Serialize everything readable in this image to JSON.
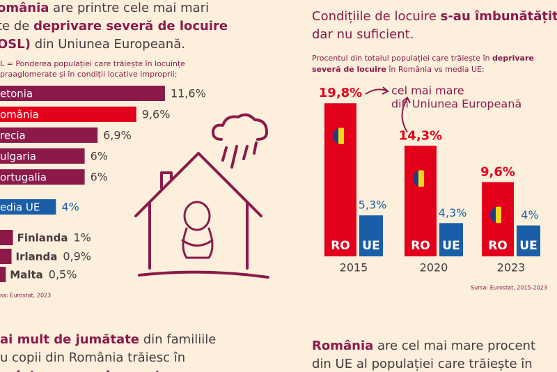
{
  "left_title": {
    "lines": [
      [
        {
          "text": "omânia",
          "bold": true
        },
        {
          "text": " are printre cele mai mari",
          "bold": false
        }
      ],
      [
        {
          "text": "te de ",
          "bold": false
        },
        {
          "text": "deprivare severă de locuire",
          "bold": true
        }
      ],
      [
        {
          "text": "OSL)",
          "bold": true
        },
        {
          "text": " din Uniunea Europeană.",
          "bold": false
        }
      ]
    ]
  },
  "right_title": {
    "lines": [
      [
        {
          "text": "Condițiile de locuire ",
          "bold": false
        },
        {
          "text": "s-au îmbunătățit,",
          "bold": true
        }
      ],
      [
        {
          "text": "dar nu suficient.",
          "bold": false
        }
      ]
    ]
  },
  "bottom_left": {
    "lines": [
      [
        {
          "text": "ai mult de jumătate",
          "bold": true
        },
        {
          "text": " din familiile",
          "bold": false
        }
      ],
      [
        {
          "text": "u copii din România trăiesc în",
          "bold": false
        }
      ],
      [
        {
          "text": "cuințe supraaglomerate",
          "bold": true
        }
      ]
    ]
  },
  "bottom_right": {
    "lines": [
      [
        {
          "text": "România",
          "bold": true
        },
        {
          "text": " are cel mai mare procent",
          "bold": false
        }
      ],
      [
        {
          "text": "din UE al populației care trăiește în",
          "bold": false
        }
      ]
    ]
  },
  "chart_data": [
    {
      "type": "hbar",
      "subtitle": [
        "L = Ponderea populației care trăiește în locuințe",
        "praaglomerate și în condiții locative improprii:"
      ],
      "categories": [
        "etonia",
        "omânia",
        "recia",
        "ulgaria",
        "ortugalia",
        "edia UE",
        "Finlanda",
        "Irlanda",
        "Malta"
      ],
      "values": [
        11.6,
        9.6,
        6.9,
        6,
        6,
        4,
        1,
        0.9,
        0.5
      ],
      "value_labels": [
        "11,6%",
        "9,6%",
        "6,9%",
        "6%",
        "6%",
        "4%",
        "1%",
        "0,9%",
        "0,5%"
      ],
      "colors": [
        "#8b1a4a",
        "#e3001b",
        "#8b1a4a",
        "#8b1a4a",
        "#8b1a4a",
        "#1a5ea8",
        "#8b1a4a",
        "#8b1a4a",
        "#8b1a4a"
      ],
      "source": "sa: Eurostat, 2023"
    },
    {
      "type": "grouped_bar",
      "subtitle": [
        [
          {
            "text": "Procentul din totalul populației care trăiește în ",
            "bold": false
          },
          {
            "text": "deprivare",
            "bold": true
          }
        ],
        [
          {
            "text": "severă de locuire",
            "bold": true
          },
          {
            "text": " în România vs media UE:",
            "bold": false
          }
        ]
      ],
      "categories": [
        "2015",
        "2020",
        "2023"
      ],
      "series": [
        {
          "name": "RO",
          "color": "#e3001b",
          "values": [
            19.8,
            14.3,
            9.6
          ],
          "value_labels": [
            "19,8%",
            "14,3%",
            "9,6%"
          ]
        },
        {
          "name": "UE",
          "color": "#1a5ea8",
          "values": [
            5.3,
            4.3,
            4
          ],
          "value_labels": [
            "5,3%",
            "4,3%",
            "4%"
          ]
        }
      ],
      "annotation": [
        "cel mai mare",
        "din Uniunea Europeană"
      ],
      "source": "Sursa: Eurostat, 2015-2023"
    }
  ]
}
